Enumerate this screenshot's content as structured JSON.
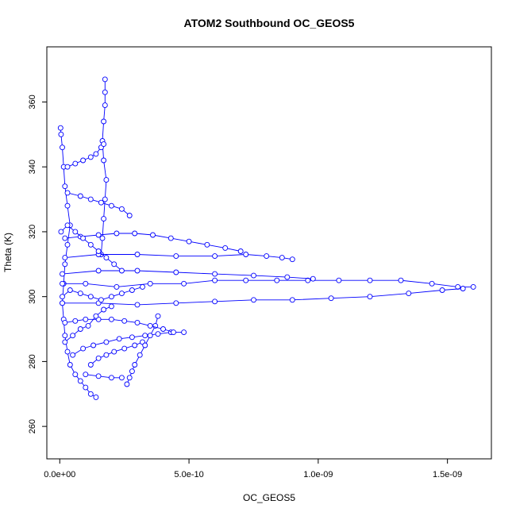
{
  "chart_data": {
    "type": "scatter",
    "title": "ATOM2 Southbound OC_GEOS5",
    "xlabel": "OC_GEOS5",
    "ylabel": "Theta (K)",
    "xlim": [
      -5e-11,
      1.67e-09
    ],
    "ylim": [
      250,
      377
    ],
    "xticks": [
      {
        "value": 0,
        "label": "0.0e+00"
      },
      {
        "value": 5e-10,
        "label": "5.0e-10"
      },
      {
        "value": 1e-09,
        "label": "1.0e-09"
      },
      {
        "value": 1.5e-09,
        "label": "1.5e-09"
      }
    ],
    "yticks": [
      {
        "value": 260,
        "label": "260"
      },
      {
        "value": 280,
        "label": "280"
      },
      {
        "value": 300,
        "label": "300"
      },
      {
        "value": 320,
        "label": "320"
      },
      {
        "value": 340,
        "label": "340"
      },
      {
        "value": 360,
        "label": "360"
      }
    ],
    "grid": false,
    "marker": "open-circle",
    "color": "#0000ff",
    "series": [
      {
        "values": [
          [
            1.4e-10,
            269
          ],
          [
            1.2e-10,
            270
          ],
          [
            1e-10,
            272
          ],
          [
            8e-11,
            274
          ],
          [
            6e-11,
            276
          ],
          [
            4e-11,
            279
          ],
          [
            3e-11,
            283
          ],
          [
            2e-11,
            288
          ],
          [
            1.5e-11,
            293
          ],
          [
            1e-11,
            298
          ],
          [
            1.5e-11,
            304
          ],
          [
            2e-11,
            310
          ],
          [
            3e-11,
            316
          ],
          [
            4e-11,
            322
          ],
          [
            3e-11,
            328
          ],
          [
            2e-11,
            334
          ],
          [
            1.5e-11,
            340
          ],
          [
            1e-11,
            346
          ],
          [
            5e-12,
            350
          ],
          [
            3e-12,
            352
          ]
        ]
      },
      {
        "values": [
          [
            1.6e-10,
            313
          ],
          [
            1.65e-10,
            318
          ],
          [
            1.7e-10,
            324
          ],
          [
            1.75e-10,
            330
          ],
          [
            1.8e-10,
            336
          ],
          [
            1.7e-10,
            342
          ],
          [
            1.65e-10,
            348
          ],
          [
            1.7e-10,
            354
          ],
          [
            1.75e-10,
            359
          ],
          [
            1.75e-10,
            363
          ],
          [
            1.75e-10,
            367
          ]
        ]
      },
      {
        "values": [
          [
            1e-11,
            304
          ],
          [
            1e-10,
            304
          ],
          [
            2.2e-10,
            303
          ],
          [
            3.5e-10,
            304
          ],
          [
            4.8e-10,
            304
          ],
          [
            6e-10,
            305
          ],
          [
            7.2e-10,
            305
          ],
          [
            8.4e-10,
            305
          ],
          [
            9.6e-10,
            305
          ],
          [
            1.08e-09,
            305
          ],
          [
            1.2e-09,
            305
          ],
          [
            1.32e-09,
            305
          ],
          [
            1.44e-09,
            304
          ],
          [
            1.54e-09,
            303
          ],
          [
            1.6e-09,
            303
          ]
        ]
      },
      {
        "values": [
          [
            1e-11,
            298
          ],
          [
            1.5e-10,
            298
          ],
          [
            3e-10,
            297.5
          ],
          [
            4.5e-10,
            298
          ],
          [
            6e-10,
            298.5
          ],
          [
            7.5e-10,
            299
          ],
          [
            9e-10,
            299
          ],
          [
            1.05e-09,
            299.5
          ],
          [
            1.2e-09,
            300
          ],
          [
            1.35e-09,
            301
          ],
          [
            1.48e-09,
            302
          ],
          [
            1.56e-09,
            302.5
          ]
        ]
      },
      {
        "values": [
          [
            2e-11,
            312
          ],
          [
            1.5e-10,
            313
          ],
          [
            3e-10,
            313
          ],
          [
            4.5e-10,
            312.5
          ],
          [
            6e-10,
            312.5
          ],
          [
            7.2e-10,
            313
          ],
          [
            8e-10,
            312.5
          ],
          [
            8.6e-10,
            312
          ],
          [
            9e-10,
            311.5
          ]
        ]
      },
      {
        "values": [
          [
            1e-11,
            307
          ],
          [
            1.5e-10,
            308
          ],
          [
            3e-10,
            308
          ],
          [
            4.5e-10,
            307.5
          ],
          [
            6e-10,
            307
          ],
          [
            7.5e-10,
            306.5
          ],
          [
            8.8e-10,
            306
          ],
          [
            9.8e-10,
            305.5
          ]
        ]
      },
      {
        "values": [
          [
            2e-11,
            318
          ],
          [
            8e-11,
            318.5
          ],
          [
            1.5e-10,
            319
          ],
          [
            2.2e-10,
            319.5
          ],
          [
            2.9e-10,
            319.5
          ],
          [
            3.6e-10,
            319
          ],
          [
            4.3e-10,
            318
          ],
          [
            5e-10,
            317
          ],
          [
            5.7e-10,
            316
          ],
          [
            6.4e-10,
            315
          ],
          [
            7e-10,
            314
          ]
        ]
      },
      {
        "values": [
          [
            5e-11,
            282
          ],
          [
            9e-11,
            284
          ],
          [
            1.3e-10,
            285
          ],
          [
            1.8e-10,
            286
          ],
          [
            2.3e-10,
            287
          ],
          [
            2.8e-10,
            287.5
          ],
          [
            3.3e-10,
            288
          ],
          [
            3.8e-10,
            288.5
          ],
          [
            4.3e-10,
            289
          ],
          [
            4.8e-10,
            289
          ]
        ]
      },
      {
        "values": [
          [
            1.2e-10,
            279
          ],
          [
            1.5e-10,
            281
          ],
          [
            1.8e-10,
            282
          ],
          [
            2.1e-10,
            283
          ],
          [
            2.5e-10,
            284
          ],
          [
            2.9e-10,
            285
          ],
          [
            3.2e-10,
            286
          ]
        ]
      },
      {
        "values": [
          [
            2.6e-10,
            273
          ],
          [
            2.7e-10,
            275
          ],
          [
            2.8e-10,
            277
          ],
          [
            2.9e-10,
            279
          ],
          [
            3.1e-10,
            282
          ],
          [
            3.3e-10,
            285
          ],
          [
            3.5e-10,
            288
          ],
          [
            3.7e-10,
            291
          ],
          [
            3.8e-10,
            294
          ]
        ]
      },
      {
        "values": [
          [
            1e-10,
            276
          ],
          [
            1.5e-10,
            275.5
          ],
          [
            2e-10,
            275
          ],
          [
            2.4e-10,
            275
          ]
        ]
      },
      {
        "values": [
          [
            2e-11,
            292
          ],
          [
            6e-11,
            292.5
          ],
          [
            1e-10,
            293
          ],
          [
            1.5e-10,
            293
          ],
          [
            2e-10,
            293
          ],
          [
            2.5e-10,
            292.5
          ],
          [
            3e-10,
            292
          ],
          [
            3.5e-10,
            291
          ],
          [
            4e-10,
            290
          ],
          [
            4.4e-10,
            289
          ]
        ]
      },
      {
        "values": [
          [
            3e-11,
            332
          ],
          [
            8e-11,
            331
          ],
          [
            1.2e-10,
            330
          ],
          [
            1.6e-10,
            329
          ],
          [
            2e-10,
            328
          ],
          [
            2.4e-10,
            327
          ],
          [
            2.7e-10,
            325
          ]
        ]
      },
      {
        "values": [
          [
            3e-11,
            340
          ],
          [
            6e-11,
            341
          ],
          [
            9e-11,
            342
          ],
          [
            1.2e-10,
            343
          ],
          [
            1.4e-10,
            344
          ],
          [
            1.6e-10,
            346
          ],
          [
            1.7e-10,
            347
          ]
        ]
      },
      {
        "values": [
          [
            1e-11,
            300
          ],
          [
            4e-11,
            302
          ],
          [
            8e-11,
            301
          ],
          [
            1.2e-10,
            300
          ],
          [
            1.6e-10,
            299
          ],
          [
            2e-10,
            300
          ],
          [
            2.4e-10,
            301
          ],
          [
            2.8e-10,
            302
          ],
          [
            3.2e-10,
            303
          ]
        ]
      },
      {
        "values": [
          [
            5e-12,
            320
          ],
          [
            3e-11,
            322
          ],
          [
            6e-11,
            320
          ],
          [
            9e-11,
            318
          ],
          [
            1.2e-10,
            316
          ],
          [
            1.5e-10,
            314
          ],
          [
            1.8e-10,
            312
          ],
          [
            2.1e-10,
            310
          ],
          [
            2.4e-10,
            308
          ]
        ]
      },
      {
        "values": [
          [
            2e-11,
            286
          ],
          [
            5e-11,
            288
          ],
          [
            8e-11,
            290
          ],
          [
            1.1e-10,
            291
          ],
          [
            1.4e-10,
            294
          ],
          [
            1.7e-10,
            296
          ],
          [
            2e-10,
            297
          ]
        ]
      }
    ]
  }
}
